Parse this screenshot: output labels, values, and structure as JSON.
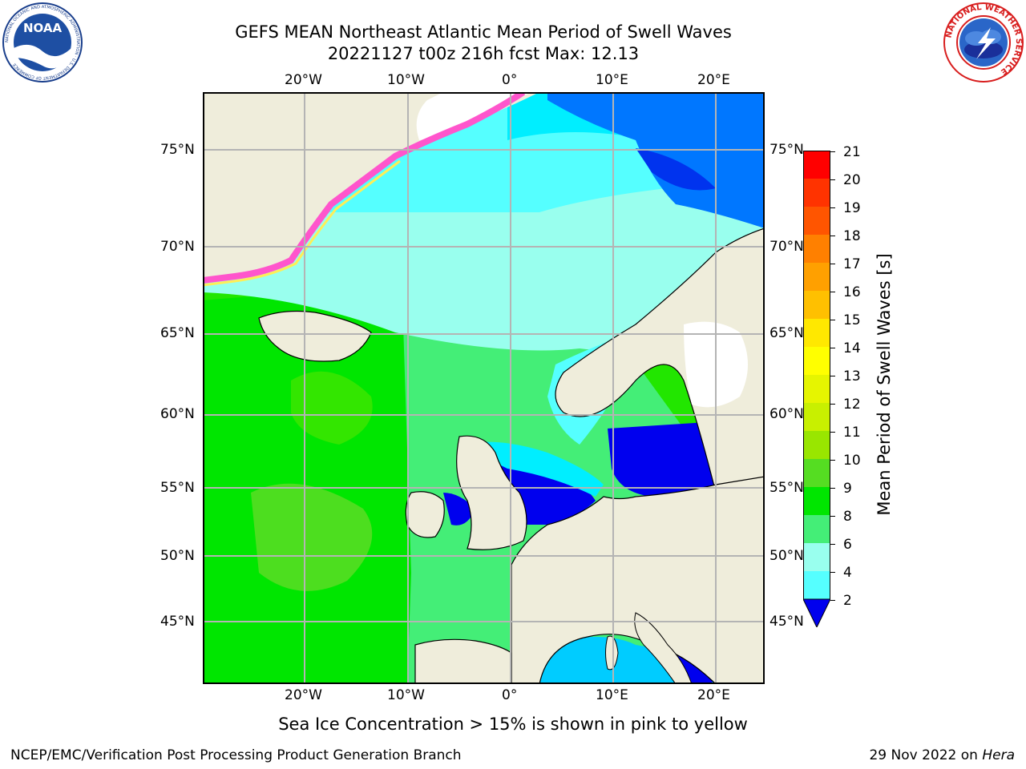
{
  "title": {
    "line1": "GEFS MEAN Northeast Atlantic Mean Period of Swell Waves",
    "line2": "20221127 t00z 216h fcst   Max: 12.13"
  },
  "logos": {
    "noaa_text": "NOAA",
    "noaa_ring": "NATIONAL OCEANIC AND ATMOSPHERIC ADMINISTRATION · U.S. DEPARTMENT OF COMMERCE",
    "nws_ring": "NATIONAL WEATHER SERVICE"
  },
  "map": {
    "lon_labels_top": [
      "20°W",
      "10°W",
      "0°",
      "10°E",
      "20°E"
    ],
    "lon_labels_bottom": [
      "20°W",
      "10°W",
      "0°",
      "10°E",
      "20°E"
    ],
    "lat_labels_left": [
      "75°N",
      "70°N",
      "65°N",
      "60°N",
      "55°N",
      "50°N",
      "45°N"
    ],
    "lat_labels_right": [
      "75°N",
      "70°N",
      "65°N",
      "60°N",
      "55°N",
      "50°N",
      "45°N"
    ],
    "colors": {
      "land": "#efeddb",
      "ice_pink": "#ff55cc",
      "ice_yellow": "#ffee55",
      "grid": "#b4b4b4"
    }
  },
  "colorbar": {
    "label": "Mean Period of Swell Waves [s]",
    "ticks": [
      "21",
      "20",
      "19",
      "18",
      "17",
      "16",
      "15",
      "14",
      "13",
      "12",
      "11",
      "10",
      "9",
      "8",
      "6",
      "4",
      "2"
    ],
    "colors": [
      "#ff0000",
      "#ff3300",
      "#ff5500",
      "#ff8000",
      "#ffa000",
      "#ffc000",
      "#ffe800",
      "#ffff00",
      "#e6f500",
      "#c8f000",
      "#99e600",
      "#55dd22",
      "#00e600",
      "#44ee77",
      "#99ffee",
      "#55ffff",
      "#00eeff",
      "#0077ff",
      "#0033ee",
      "#0000ee"
    ]
  },
  "subtitle": "Sea Ice Concentration > 15% is shown in pink to yellow",
  "footer": {
    "left": "NCEP/EMC/Verification Post Processing Product Generation Branch",
    "date": "29 Nov 2022 on ",
    "machine": "Hera"
  }
}
